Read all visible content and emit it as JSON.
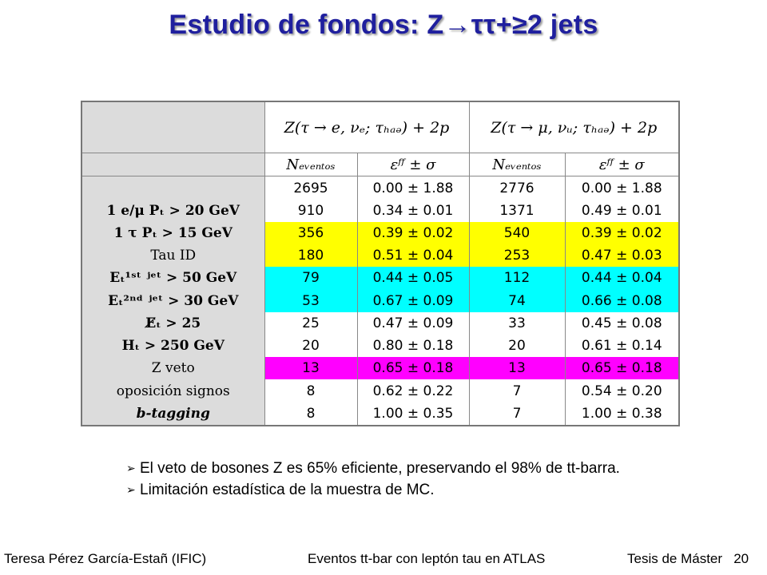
{
  "slide": {
    "title": "Estudio de fondos: Z→ττ+≥2 jets"
  },
  "table": {
    "channel_e": "Z(τ → e, νₑ; τₕₐₔ) + 2p",
    "channel_mu": "Z(τ → μ, νᵤ; τₕₐₔ) + 2p",
    "n_events_label": "Nₑᵥₑₙₜₒₛ",
    "eff_label": "εᶠᶠ ± σ",
    "rows": [
      {
        "cut": "",
        "n_e": "2695",
        "eff_e": "0.00 ± 1.88",
        "n_mu": "2776",
        "eff_mu": "0.00 ± 1.88",
        "bg": "#ffffff",
        "style": ""
      },
      {
        "cut": "1 e/μ Pₜ > 20 GeV",
        "n_e": "910",
        "eff_e": "0.34 ± 0.01",
        "n_mu": "1371",
        "eff_mu": "0.49 ± 0.01",
        "bg": "#ffffff",
        "style": ""
      },
      {
        "cut": "1 τ Pₜ > 15 GeV",
        "n_e": "356",
        "eff_e": "0.39 ± 0.02",
        "n_mu": "540",
        "eff_mu": "0.39 ± 0.02",
        "bg": "#ffff00",
        "style": ""
      },
      {
        "cut": "Tau ID",
        "n_e": "180",
        "eff_e": "0.51 ± 0.04",
        "n_mu": "253",
        "eff_mu": "0.47 ± 0.03",
        "bg": "#ffff00",
        "style": "plain"
      },
      {
        "cut": "Eₜ¹ˢᵗ ʲᵉᵗ > 50 GeV",
        "n_e": "79",
        "eff_e": "0.44 ± 0.05",
        "n_mu": "112",
        "eff_mu": "0.44 ± 0.04",
        "bg": "#00ffff",
        "style": ""
      },
      {
        "cut": "Eₜ²ⁿᵈ ʲᵉᵗ > 30 GeV",
        "n_e": "53",
        "eff_e": "0.67 ± 0.09",
        "n_mu": "74",
        "eff_mu": "0.66 ± 0.08",
        "bg": "#00ffff",
        "style": ""
      },
      {
        "cut": "E̸ₜ > 25",
        "n_e": "25",
        "eff_e": "0.47 ± 0.09",
        "n_mu": "33",
        "eff_mu": "0.45 ± 0.08",
        "bg": "#ffffff",
        "style": ""
      },
      {
        "cut": "Hₜ > 250 GeV",
        "n_e": "20",
        "eff_e": "0.80 ± 0.18",
        "n_mu": "20",
        "eff_mu": "0.61 ± 0.14",
        "bg": "#ffffff",
        "style": ""
      },
      {
        "cut": "Z veto",
        "n_e": "13",
        "eff_e": "0.65 ± 0.18",
        "n_mu": "13",
        "eff_mu": "0.65 ± 0.18",
        "bg": "#ff00ff",
        "style": "plain"
      },
      {
        "cut": "oposición signos",
        "n_e": "8",
        "eff_e": "0.62 ± 0.22",
        "n_mu": "7",
        "eff_mu": "0.54 ± 0.20",
        "bg": "#ffffff",
        "style": "plain"
      },
      {
        "cut": "b-tagging",
        "n_e": "8",
        "eff_e": "1.00 ± 0.35",
        "n_mu": "7",
        "eff_mu": "1.00 ± 0.38",
        "bg": "#ffffff",
        "style": "ital"
      }
    ]
  },
  "bullets": [
    "El veto de bosones Z es 65% eficiente, preservando el 98% de tt-barra.",
    "Limitación estadística de la muestra de MC."
  ],
  "bullet_icon": "arrow-bullet-icon",
  "bullet_glyph": "➢",
  "footer": {
    "author": "Teresa Pérez García-Estañ (IFIC)",
    "topic": "Eventos tt-bar con leptón tau en ATLAS",
    "thesis": "Tesis de Máster",
    "page": "20"
  }
}
